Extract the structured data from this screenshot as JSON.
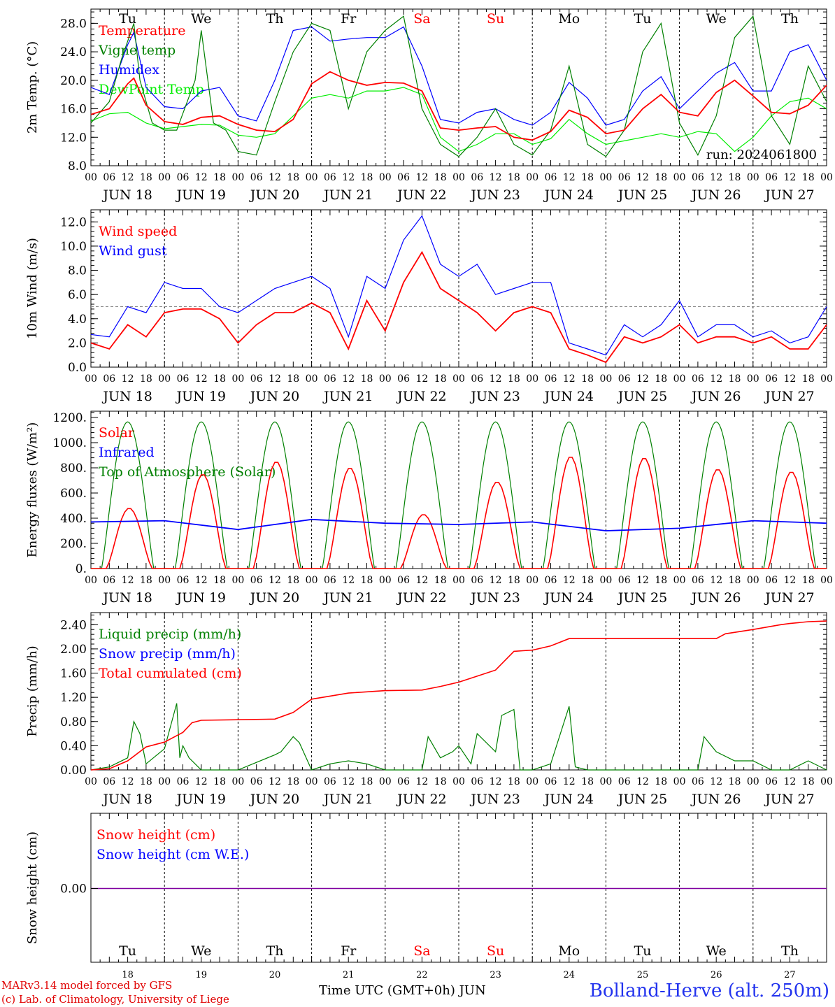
{
  "chart_data": [
    {
      "type": "line",
      "ylabel": "2m Temp. (°C)",
      "ylim": [
        8,
        30
      ],
      "yticks": [
        "8.0",
        "12.0",
        "16.0",
        "20.0",
        "24.0",
        "28.0"
      ],
      "x_unit": "hour",
      "x_range": [
        0,
        240
      ],
      "run_label": "run: 2024061800",
      "legend": [
        {
          "label": "Temperature",
          "color": "#ff0000"
        },
        {
          "label": "Vigne temp",
          "color": "#008000"
        },
        {
          "label": "Humidex",
          "color": "#0000ff"
        },
        {
          "label": "DewPoint Temp",
          "color": "#00ee00"
        }
      ],
      "series": [
        {
          "name": "Temperature",
          "color": "#ff0000",
          "x": [
            0,
            6,
            12,
            14,
            18,
            24,
            30,
            36,
            42,
            48,
            54,
            60,
            66,
            72,
            78,
            84,
            90,
            96,
            102,
            108,
            114,
            120,
            126,
            132,
            138,
            144,
            150,
            156,
            162,
            168,
            174,
            180,
            186,
            192,
            198,
            204,
            210,
            216,
            222,
            228,
            234,
            240
          ],
          "values": [
            15.2,
            16.0,
            19.5,
            20.3,
            16.5,
            14.2,
            13.8,
            14.8,
            15.0,
            13.8,
            13.0,
            12.8,
            14.5,
            19.5,
            21.2,
            20.0,
            19.3,
            19.7,
            19.6,
            18.5,
            13.3,
            13.0,
            13.3,
            13.5,
            12.0,
            11.6,
            12.8,
            15.8,
            14.8,
            12.5,
            13.0,
            16.0,
            18.0,
            15.5,
            15.0,
            18.3,
            20.0,
            17.8,
            15.5,
            15.3,
            16.5,
            19.3
          ]
        },
        {
          "name": "Vigne temp",
          "color": "#008000",
          "x": [
            0,
            6,
            10,
            14,
            16,
            20,
            24,
            28,
            34,
            36,
            40,
            44,
            48,
            54,
            60,
            66,
            72,
            78,
            84,
            90,
            96,
            102,
            108,
            114,
            120,
            126,
            132,
            138,
            144,
            150,
            156,
            162,
            168,
            174,
            180,
            186,
            192,
            198,
            204,
            210,
            216,
            222,
            228,
            234,
            240
          ],
          "values": [
            14,
            17,
            23,
            28,
            20,
            14,
            13,
            13,
            20,
            27,
            14,
            13,
            10,
            9.5,
            17,
            24,
            28,
            27,
            16,
            24,
            27,
            29,
            16,
            11,
            9.3,
            12,
            16,
            11,
            9.5,
            13,
            22,
            11,
            9.3,
            13,
            24,
            28,
            14,
            9.5,
            15,
            26,
            29,
            15,
            11,
            22,
            17
          ]
        },
        {
          "name": "Humidex",
          "color": "#0000ff",
          "x": [
            0,
            6,
            12,
            14,
            18,
            24,
            30,
            36,
            42,
            48,
            54,
            60,
            66,
            72,
            78,
            84,
            90,
            96,
            102,
            108,
            114,
            120,
            126,
            132,
            138,
            144,
            150,
            156,
            162,
            168,
            174,
            180,
            186,
            192,
            198,
            204,
            210,
            216,
            222,
            228,
            234,
            240
          ],
          "values": [
            19,
            18,
            25,
            26.7,
            19,
            16.3,
            16,
            18.5,
            19,
            15,
            14.3,
            20,
            27,
            27.5,
            25.5,
            25.8,
            26,
            26,
            27.5,
            22,
            14.5,
            14,
            15.5,
            16,
            14.5,
            13.7,
            15.5,
            19.7,
            17.5,
            13.7,
            14.5,
            18.5,
            20.5,
            16,
            18.5,
            21,
            22.5,
            18.5,
            18.5,
            24,
            25,
            20
          ]
        },
        {
          "name": "DewPoint Temp",
          "color": "#00ee00",
          "x": [
            0,
            6,
            12,
            18,
            24,
            30,
            36,
            42,
            48,
            54,
            60,
            66,
            72,
            78,
            84,
            90,
            96,
            102,
            108,
            114,
            120,
            126,
            132,
            138,
            144,
            150,
            156,
            162,
            168,
            174,
            180,
            186,
            192,
            198,
            204,
            210,
            216,
            222,
            228,
            234,
            240
          ],
          "values": [
            14.3,
            15.3,
            15.5,
            14,
            13.2,
            13.5,
            13.8,
            13.7,
            12.3,
            12,
            12.5,
            15,
            17.5,
            18,
            17.5,
            18.5,
            18.5,
            19,
            18,
            12,
            10,
            11,
            12.5,
            12.5,
            11,
            11.8,
            14.5,
            12.5,
            11,
            11.5,
            12,
            12.5,
            12,
            12.8,
            12.5,
            10,
            12,
            15,
            17,
            17.5,
            16
          ]
        }
      ]
    },
    {
      "type": "line",
      "ylabel": "10m Wind (m/s)",
      "ylim": [
        0,
        13
      ],
      "yticks": [
        "0.0",
        "2.0",
        "4.0",
        "6.0",
        "8.0",
        "10.0",
        "12.0"
      ],
      "reference_line": 5,
      "legend": [
        {
          "label": "Wind speed",
          "color": "#ff0000"
        },
        {
          "label": "Wind gust",
          "color": "#0000ff"
        }
      ],
      "series": [
        {
          "name": "Wind speed",
          "color": "#ff0000",
          "x": [
            0,
            6,
            12,
            18,
            24,
            30,
            36,
            42,
            48,
            54,
            60,
            66,
            72,
            78,
            84,
            90,
            96,
            102,
            108,
            114,
            120,
            126,
            132,
            138,
            144,
            150,
            156,
            162,
            168,
            174,
            180,
            186,
            192,
            198,
            204,
            210,
            216,
            222,
            228,
            234,
            240
          ],
          "values": [
            2.0,
            1.5,
            3.5,
            2.5,
            4.5,
            4.8,
            4.8,
            4.0,
            2.0,
            3.5,
            4.5,
            4.5,
            5.3,
            4.5,
            1.5,
            5.5,
            3.0,
            7.0,
            9.5,
            6.5,
            5.5,
            4.5,
            3.0,
            4.5,
            5.0,
            4.5,
            1.5,
            1.0,
            0.4,
            2.5,
            2.0,
            2.5,
            3.5,
            2.0,
            2.5,
            2.5,
            2.0,
            2.5,
            1.5,
            1.5,
            3.5
          ]
        },
        {
          "name": "Wind gust",
          "color": "#0000ff",
          "x": [
            0,
            6,
            12,
            18,
            24,
            30,
            36,
            42,
            48,
            54,
            60,
            66,
            72,
            78,
            84,
            90,
            96,
            102,
            108,
            114,
            120,
            126,
            132,
            138,
            144,
            150,
            156,
            162,
            168,
            174,
            180,
            186,
            192,
            198,
            204,
            210,
            216,
            222,
            228,
            234,
            240
          ],
          "values": [
            2.7,
            2.5,
            5.0,
            4.5,
            7.0,
            6.5,
            6.5,
            5.0,
            4.5,
            5.5,
            6.5,
            7.0,
            7.5,
            6.5,
            2.5,
            7.5,
            6.5,
            10.5,
            12.5,
            8.5,
            7.5,
            8.5,
            6.0,
            6.5,
            7.0,
            7.0,
            2.0,
            1.5,
            1.0,
            3.5,
            2.5,
            3.5,
            5.5,
            2.5,
            3.5,
            3.5,
            2.5,
            3.0,
            2.0,
            2.5,
            5.0
          ]
        }
      ]
    },
    {
      "type": "line",
      "ylabel": "Energy fluxes (W/m²)",
      "ylim": [
        0,
        1250
      ],
      "yticks": [
        "0.",
        "200.",
        "400.",
        "600.",
        "800.",
        "1000.",
        "1200."
      ],
      "legend": [
        {
          "label": "Solar",
          "color": "#ff0000"
        },
        {
          "label": "Infrared",
          "color": "#0000ff"
        },
        {
          "label": "Top of Atmosphere (Solar)",
          "color": "#008000"
        }
      ],
      "toa_peak": 1165,
      "infrared": {
        "x": [
          0,
          24,
          48,
          72,
          96,
          120,
          144,
          168,
          192,
          216,
          240
        ],
        "values": [
          370,
          380,
          310,
          390,
          360,
          350,
          370,
          300,
          320,
          380,
          360
        ]
      },
      "solar_daily_peaks": [
        480,
        750,
        850,
        800,
        430,
        690,
        890,
        880,
        790,
        770
      ]
    },
    {
      "type": "line",
      "ylabel": "Precip (mm/h)",
      "ylim": [
        0,
        2.6
      ],
      "yticks": [
        "0.00",
        "0.40",
        "0.80",
        "1.20",
        "1.60",
        "2.00",
        "2.40"
      ],
      "legend": [
        {
          "label": "Liquid precip (mm/h)",
          "color": "#008000"
        },
        {
          "label": "Snow precip (mm/h)",
          "color": "#0000ff"
        },
        {
          "label": "Total cumulated (cm)",
          "color": "#ff0000"
        }
      ],
      "series": [
        {
          "name": "Total cumulated (cm)",
          "color": "#ff0000",
          "x": [
            0,
            6,
            12,
            18,
            24,
            30,
            33,
            36,
            48,
            60,
            66,
            72,
            78,
            84,
            96,
            108,
            114,
            120,
            126,
            132,
            138,
            141,
            144,
            150,
            156,
            162,
            168,
            180,
            192,
            204,
            207,
            216,
            225,
            228,
            234,
            240
          ],
          "values": [
            0,
            0.02,
            0.15,
            0.38,
            0.46,
            0.62,
            0.78,
            0.82,
            0.83,
            0.84,
            0.95,
            1.17,
            1.22,
            1.27,
            1.31,
            1.32,
            1.38,
            1.45,
            1.55,
            1.65,
            1.96,
            1.97,
            1.98,
            2.05,
            2.17,
            2.17,
            2.17,
            2.17,
            2.17,
            2.17,
            2.25,
            2.32,
            2.4,
            2.42,
            2.45,
            2.46
          ]
        },
        {
          "name": "Liquid precip (mm/h)",
          "color": "#008000",
          "x": [
            0,
            6,
            12,
            14,
            16,
            18,
            24,
            28,
            29,
            30,
            32,
            36,
            48,
            60,
            62,
            66,
            68,
            72,
            78,
            84,
            90,
            96,
            108,
            110,
            114,
            118,
            120,
            124,
            126,
            132,
            134,
            138,
            140,
            144,
            150,
            156,
            158,
            162,
            168,
            180,
            192,
            198,
            200,
            204,
            210,
            216,
            222,
            228,
            234,
            240
          ],
          "values": [
            0,
            0.05,
            0.2,
            0.8,
            0.6,
            0.1,
            0.35,
            1.1,
            0.2,
            0.4,
            0.2,
            0,
            0,
            0.25,
            0.3,
            0.55,
            0.45,
            0,
            0.1,
            0.15,
            0.1,
            0,
            0,
            0.55,
            0.2,
            0.3,
            0.4,
            0.1,
            0.6,
            0.3,
            0.9,
            1.0,
            0,
            0,
            0.1,
            1.05,
            0.05,
            0,
            0,
            0,
            0,
            0,
            0.55,
            0.3,
            0.15,
            0.15,
            0,
            0,
            0.15,
            0
          ]
        }
      ]
    },
    {
      "type": "line",
      "ylabel": "Snow height (cm)",
      "yticks": [
        "0.00"
      ],
      "legend": [
        {
          "label": "Snow height (cm)",
          "color": "#ff0000"
        },
        {
          "label": "Snow height (cm W.E.)",
          "color": "#0000ff"
        }
      ],
      "series": [
        {
          "name": "Snow height (cm)",
          "color": "#8000a0",
          "values": [
            0,
            0
          ]
        }
      ]
    }
  ],
  "days": [
    {
      "abbr": "Tu",
      "date": "18",
      "color": "#000000"
    },
    {
      "abbr": "We",
      "date": "19",
      "color": "#000000"
    },
    {
      "abbr": "Th",
      "date": "20",
      "color": "#000000"
    },
    {
      "abbr": "Fr",
      "date": "21",
      "color": "#000000"
    },
    {
      "abbr": "Sa",
      "date": "22",
      "color": "#ff0000"
    },
    {
      "abbr": "Su",
      "date": "23",
      "color": "#ff0000"
    },
    {
      "abbr": "Mo",
      "date": "24",
      "color": "#000000"
    },
    {
      "abbr": "Tu",
      "date": "25",
      "color": "#000000"
    },
    {
      "abbr": "We",
      "date": "26",
      "color": "#000000"
    },
    {
      "abbr": "Th",
      "date": "27",
      "color": "#000000"
    }
  ],
  "hour_labels": [
    "00",
    "06",
    "12",
    "18"
  ],
  "date_labels": [
    "JUN 18",
    "JUN 19",
    "JUN 20",
    "JUN 21",
    "JUN 22",
    "JUN 23",
    "JUN 24",
    "JUN 25",
    "JUN 26",
    "JUN 27"
  ],
  "footer": {
    "credit_line1": "MARv3.14 model forced by GFS",
    "credit_line2": "(c) Lab. of Climatology, University of Liege",
    "xaxis_title": "Time UTC (GMT+0h) JUN",
    "station": "Bolland-Herve (alt. 250m)"
  }
}
